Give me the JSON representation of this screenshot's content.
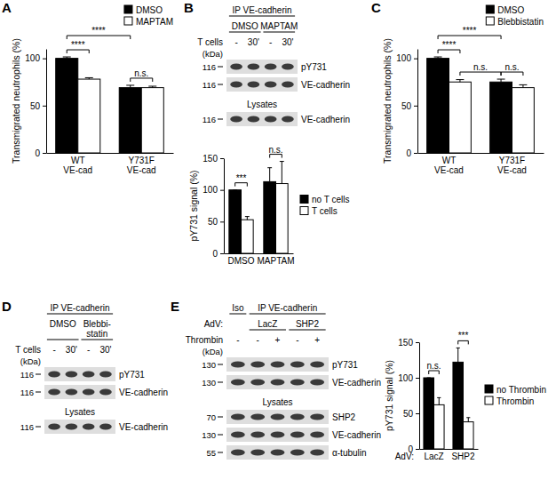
{
  "chart_data": [
    {
      "type": "bar",
      "panel": "A",
      "y_label": "Transmigrated neutrophils (%)",
      "categories": [
        "WT\nVE-cad",
        "Y731F\nVE-cad"
      ],
      "series": [
        {
          "name": "DMSO",
          "color": "#000000",
          "values": [
            100,
            69
          ],
          "errors": [
            1.5,
            2.5
          ]
        },
        {
          "name": "MAPTAM",
          "color": "#ffffff",
          "values": [
            78,
            69
          ],
          "errors": [
            1.5,
            1.5
          ]
        }
      ],
      "ylim": [
        0,
        110
      ],
      "yticks": [
        0,
        50,
        100
      ],
      "legend": "top-right",
      "annotations": [
        {
          "text": "****",
          "from": {
            "category": "WT\nVE-cad",
            "series": "DMSO"
          },
          "to": {
            "category": "WT\nVE-cad",
            "series": "MAPTAM"
          }
        },
        {
          "text": "****",
          "from": {
            "category": "WT\nVE-cad",
            "series": "DMSO"
          },
          "to": {
            "category": "Y731F\nVE-cad",
            "series": "DMSO"
          }
        },
        {
          "text": "n.s.",
          "from": {
            "category": "Y731F\nVE-cad",
            "series": "DMSO"
          },
          "to": {
            "category": "Y731F\nVE-cad",
            "series": "MAPTAM"
          }
        }
      ]
    },
    {
      "type": "bar",
      "y_label": "pY731 signal (%)",
      "categories": [
        "DMSO",
        "MAPTAM"
      ],
      "series": [
        {
          "name": "no T cells",
          "color": "#000000",
          "values": [
            100,
            113
          ],
          "errors": [
            0,
            22
          ]
        },
        {
          "name": "T cells",
          "color": "#ffffff",
          "values": [
            53,
            110
          ],
          "errors": [
            5,
            35
          ]
        }
      ],
      "ylim": [
        0,
        150
      ],
      "yticks": [
        0,
        50,
        100,
        150
      ],
      "legend": "right",
      "annotations": [
        {
          "text": "***",
          "from": {
            "category": "DMSO",
            "series": "no T cells"
          },
          "to": {
            "category": "DMSO",
            "series": "T cells"
          }
        },
        {
          "text": "n.s.",
          "from": {
            "category": "MAPTAM",
            "series": "no T cells"
          },
          "to": {
            "category": "MAPTAM",
            "series": "T cells"
          }
        }
      ]
    },
    {
      "type": "bar",
      "panel": "C",
      "y_label": "Transmigrated neutrophils (%)",
      "categories": [
        "WT\nVE-cad",
        "Y731F\nVE-cad"
      ],
      "series": [
        {
          "name": "DMSO",
          "color": "#000000",
          "values": [
            100,
            75
          ],
          "errors": [
            1.5,
            3
          ]
        },
        {
          "name": "Blebbistatin",
          "color": "#ffffff",
          "values": [
            75,
            69
          ],
          "errors": [
            2.5,
            3
          ]
        }
      ],
      "ylim": [
        0,
        110
      ],
      "yticks": [
        0,
        50,
        100
      ],
      "legend": "top-right",
      "annotations": [
        {
          "text": "****",
          "from": {
            "category": "WT\nVE-cad",
            "series": "DMSO"
          },
          "to": {
            "category": "WT\nVE-cad",
            "series": "Blebbistatin"
          }
        },
        {
          "text": "n.s.",
          "from": {
            "category": "WT\nVE-cad",
            "series": "Blebbistatin"
          },
          "to": {
            "category": "Y731F\nVE-cad",
            "series": "DMSO"
          }
        },
        {
          "text": "****",
          "from": {
            "category": "WT\nVE-cad",
            "series": "DMSO"
          },
          "to": {
            "category": "Y731F\nVE-cad",
            "series": "DMSO"
          }
        },
        {
          "text": "n.s.",
          "from": {
            "category": "Y731F\nVE-cad",
            "series": "DMSO"
          },
          "to": {
            "category": "Y731F\nVE-cad",
            "series": "Blebbistatin"
          }
        }
      ]
    },
    {
      "type": "bar",
      "y_label": "pY731 signal (%)",
      "x_label": "AdV:",
      "categories": [
        "LacZ",
        "SHP2"
      ],
      "series": [
        {
          "name": "no Thrombin",
          "color": "#000000",
          "values": [
            100,
            122
          ],
          "errors": [
            0,
            20
          ]
        },
        {
          "name": "Thrombin",
          "color": "#ffffff",
          "values": [
            62,
            38
          ],
          "errors": [
            10,
            6
          ]
        }
      ],
      "ylim": [
        0,
        150
      ],
      "yticks": [
        0,
        50,
        100,
        150
      ],
      "legend": "right",
      "annotations": [
        {
          "text": "n.s.",
          "from": {
            "category": "LacZ",
            "series": "no Thrombin"
          },
          "to": {
            "category": "LacZ",
            "series": "Thrombin"
          }
        },
        {
          "text": "***",
          "from": {
            "category": "SHP2",
            "series": "no Thrombin"
          },
          "to": {
            "category": "SHP2",
            "series": "Thrombin"
          }
        }
      ]
    }
  ],
  "blots": [
    {
      "panel": "B",
      "headers": [
        {
          "cells": [
            {
              "text": "IP VE-cadherin",
              "span": 4
            }
          ]
        },
        {
          "cells": [
            {
              "text": "DMSO",
              "span": 2
            },
            {
              "text": "MAPTAM",
              "span": 2
            }
          ]
        }
      ],
      "conditions": [
        {
          "label": "T cells",
          "values": [
            "-",
            "30'",
            "-",
            "30'"
          ]
        }
      ],
      "kda_label": "(kDa)",
      "sections": [
        {
          "rows": [
            {
              "kda": 116,
              "label": "pY731"
            },
            {
              "kda": 116,
              "label": "VE-cadherin"
            }
          ]
        },
        {
          "title": "Lysates",
          "rows": [
            {
              "kda": 116,
              "label": "VE-cadherin"
            }
          ]
        }
      ]
    },
    {
      "panel": "D",
      "headers": [
        {
          "cells": [
            {
              "text": "IP VE-cadherin",
              "span": 4
            }
          ]
        },
        {
          "cells": [
            {
              "text": "DMSO",
              "span": 2
            },
            {
              "text": "Blebbi-\nstatin",
              "span": 2
            }
          ]
        }
      ],
      "conditions": [
        {
          "label": "T cells",
          "values": [
            "-",
            "30'",
            "-",
            "30'"
          ]
        }
      ],
      "kda_label": "(kDa)",
      "sections": [
        {
          "rows": [
            {
              "kda": 116,
              "label": "pY731"
            },
            {
              "kda": 116,
              "label": "VE-cadherin"
            }
          ]
        },
        {
          "title": "Lysates",
          "rows": [
            {
              "kda": 116,
              "label": "VE-cadherin"
            }
          ]
        }
      ]
    },
    {
      "panel": "E",
      "headers": [
        {
          "cells": [
            {
              "text": "Iso",
              "span": 1
            },
            {
              "text": "IP VE-cadherin",
              "span": 4
            }
          ]
        },
        {
          "label": "AdV:",
          "cells": [
            {
              "span": 1
            },
            {
              "text": "LacZ",
              "span": 2
            },
            {
              "text": "SHP2",
              "span": 2
            }
          ]
        }
      ],
      "conditions": [
        {
          "label": "Thrombin",
          "values": [
            "-",
            "-",
            "+",
            "-",
            "+"
          ]
        }
      ],
      "kda_label": "(kDa)",
      "sections": [
        {
          "rows": [
            {
              "kda": 130,
              "label": "pY731"
            },
            {
              "kda": 130,
              "label": "VE-cadherin"
            }
          ]
        },
        {
          "title": "Lysates",
          "rows": [
            {
              "kda": 70,
              "label": "SHP2"
            },
            {
              "kda": 130,
              "label": "VE-cadherin"
            },
            {
              "kda": 55,
              "label": "α-tubulin"
            }
          ]
        }
      ]
    }
  ]
}
